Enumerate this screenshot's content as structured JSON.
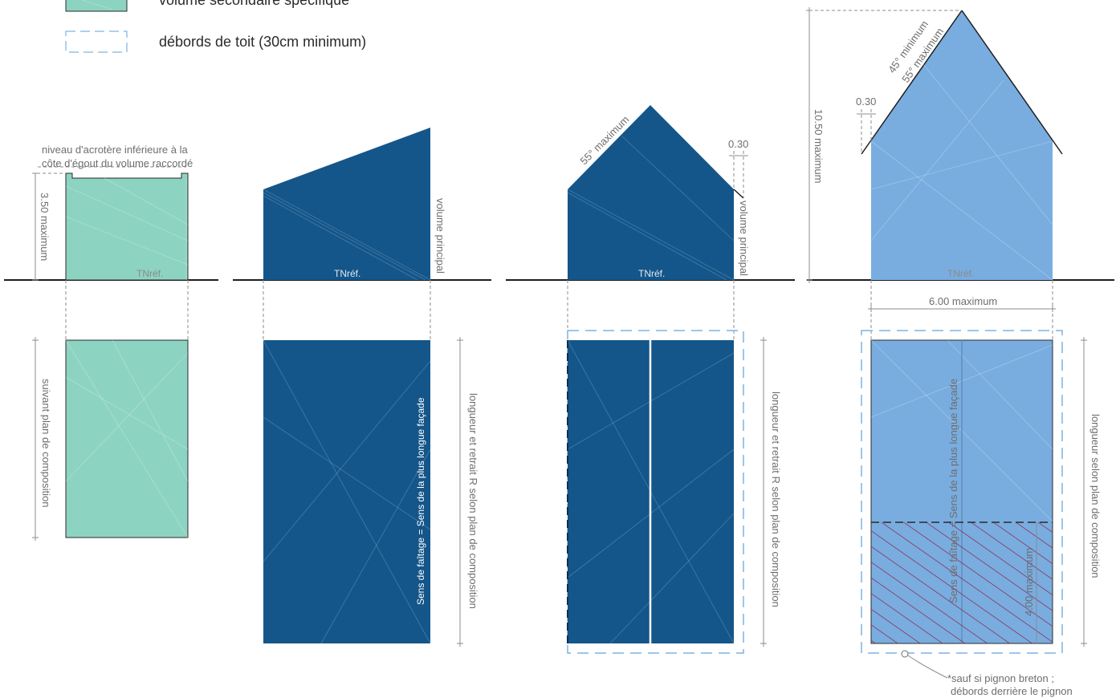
{
  "colors": {
    "secondary_volume": "#8dd3c2",
    "main_volume": "#14568a",
    "light_volume": "#79ade0",
    "overhang_dash": "#7fb3e0",
    "hatch": "#8a2a55"
  },
  "legend": {
    "secondary_label": "volume secondaire spécifique",
    "overhang_label": "débords de toit (30cm minimum)"
  },
  "fig1": {
    "note_line1": "niveau d'acrotère inférieure à la",
    "note_line2": "côte d'égout du volume raccordé",
    "height_label": "3.50 maximum",
    "tn_label": "TNréf.",
    "plan_label": "suivant plan de composition"
  },
  "fig2": {
    "tn_label": "TNréf.",
    "volume_label": "volume principal",
    "ridge_label": "Sens de faîtage = Sens de la plus longue façade",
    "length_label": "longueur et retrait R selon plan de composition"
  },
  "fig3": {
    "angle_label": "55° maximum",
    "overhang_label": "0.30",
    "tn_label": "TNréf.",
    "volume_label": "volume principal",
    "length_label": "longueur et retrait R selon plan de composition"
  },
  "fig4": {
    "height_label": "10.50 maximum",
    "angle_min_label": "45° minimum",
    "angle_max_label": "55° maximum",
    "overhang_label": "0.30",
    "tn_label": "TNréf.",
    "width_label": "6.00 maximum",
    "ridge_label": "Sens de faîtage = Sens de la plus longue façade",
    "hatch_label": "4.00 maximum",
    "length_label": "longueur selon plan de composition",
    "footnote_line1": "*sauf si pignon breton ;",
    "footnote_line2": "débords derrière le pignon"
  }
}
